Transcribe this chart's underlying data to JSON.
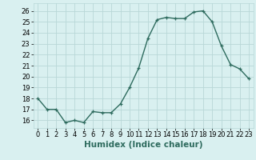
{
  "x": [
    0,
    1,
    2,
    3,
    4,
    5,
    6,
    7,
    8,
    9,
    10,
    11,
    12,
    13,
    14,
    15,
    16,
    17,
    18,
    19,
    20,
    21,
    22,
    23
  ],
  "y": [
    18,
    17,
    17,
    15.8,
    16,
    15.8,
    16.8,
    16.7,
    16.7,
    17.5,
    19,
    20.8,
    23.5,
    25.2,
    25.4,
    25.3,
    25.3,
    25.9,
    26.0,
    25.0,
    22.8,
    21.1,
    20.7,
    19.8
  ],
  "line_color": "#2e6b5e",
  "marker": "+",
  "markersize": 3.5,
  "linewidth": 1.0,
  "bg_color": "#d9f0f0",
  "grid_color": "#b8d8d8",
  "xlabel": "Humidex (Indice chaleur)",
  "xlim": [
    -0.5,
    23.5
  ],
  "ylim": [
    15.3,
    26.7
  ],
  "yticks": [
    16,
    17,
    18,
    19,
    20,
    21,
    22,
    23,
    24,
    25,
    26
  ],
  "xticks": [
    0,
    1,
    2,
    3,
    4,
    5,
    6,
    7,
    8,
    9,
    10,
    11,
    12,
    13,
    14,
    15,
    16,
    17,
    18,
    19,
    20,
    21,
    22,
    23
  ],
  "xlabel_fontsize": 7.5,
  "tick_fontsize": 6.0
}
